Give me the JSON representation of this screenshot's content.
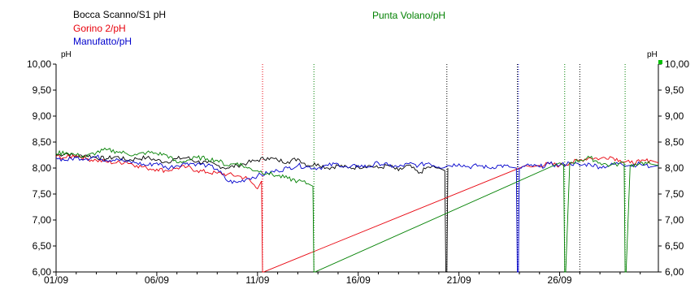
{
  "chart_data": {
    "type": "line",
    "legend": [
      {
        "name": "Bocca Scanno/S1 pH",
        "color": "#000000"
      },
      {
        "name": "Gorino 2/pH",
        "color": "#e8000b"
      },
      {
        "name": "Manufatto/pH",
        "color": "#0000cc"
      },
      {
        "name": "Punta Volano/pH",
        "color": "#008000"
      }
    ],
    "y_unit_left": "pH",
    "y_unit_right": "pH",
    "ylim": [
      6.0,
      10.0
    ],
    "y_ticks": [
      "10,00",
      "9,50",
      "9,00",
      "8,50",
      "8,00",
      "7,50",
      "7,00",
      "6,50",
      "6,00"
    ],
    "y_tick_values": [
      10.0,
      9.5,
      9.0,
      8.5,
      8.0,
      7.5,
      7.0,
      6.5,
      6.0
    ],
    "x_ticks": [
      "01/09",
      "06/09",
      "11/09",
      "16/09",
      "21/09",
      "26/09"
    ],
    "x_tick_days": [
      1,
      6,
      11,
      16,
      21,
      26
    ],
    "xlim_days": [
      1,
      30.9
    ],
    "grid": false,
    "series": [
      {
        "name": "Bocca Scanno/S1 pH",
        "color": "#000000",
        "x": [
          1,
          1.5,
          2,
          2.5,
          3,
          3.5,
          4,
          4.5,
          5,
          5.5,
          6,
          6.5,
          7,
          7.5,
          8,
          8.5,
          9,
          9.5,
          10,
          10.5,
          11,
          11.5,
          12,
          12.5,
          13,
          13.5,
          14,
          14.5,
          15,
          15.5,
          16,
          16.5,
          17,
          17.5,
          18,
          18.5,
          19,
          19.5,
          20,
          20.3,
          20.35,
          20.4,
          20.45
        ],
        "y": [
          8.25,
          8.28,
          8.22,
          8.25,
          8.2,
          8.18,
          8.22,
          8.15,
          8.18,
          8.2,
          8.15,
          8.12,
          8.18,
          8.2,
          8.12,
          8.1,
          8.05,
          8.0,
          8.05,
          8.1,
          8.15,
          8.2,
          8.15,
          8.12,
          8.18,
          8.05,
          8.08,
          8.0,
          8.05,
          8.0,
          8.02,
          8.05,
          8.0,
          8.05,
          7.95,
          8.05,
          7.9,
          8.02,
          8.0,
          7.95,
          6.0,
          6.0,
          8.0
        ]
      },
      {
        "name": "Gorino 2/pH",
        "color": "#e8000b",
        "x": [
          1,
          1.5,
          2,
          2.5,
          3,
          3.5,
          4,
          4.5,
          5,
          5.5,
          6,
          6.5,
          7,
          7.5,
          8,
          8.5,
          9,
          9.5,
          10,
          10.5,
          11,
          11.2,
          11.25,
          11.3,
          24,
          24.3,
          24.6,
          25,
          25.5,
          26,
          26.5,
          27,
          27.5,
          28,
          28.5,
          29,
          29.5,
          30,
          30.5,
          30.9
        ],
        "y": [
          8.22,
          8.2,
          8.25,
          8.18,
          8.15,
          8.12,
          8.1,
          8.12,
          8.05,
          8.0,
          7.98,
          7.95,
          8.0,
          8.02,
          7.95,
          7.92,
          7.9,
          7.88,
          7.85,
          7.8,
          7.6,
          7.75,
          6.0,
          6.0,
          8.0,
          8.05,
          8.02,
          8.05,
          8.08,
          8.05,
          8.1,
          8.15,
          8.2,
          8.18,
          8.22,
          8.15,
          8.1,
          8.12,
          8.15,
          8.1
        ]
      },
      {
        "name": "Manufatto/pH",
        "color": "#0000cc",
        "x": [
          1,
          1.5,
          2,
          2.5,
          3,
          3.5,
          4,
          4.5,
          5,
          5.5,
          6,
          6.5,
          7,
          7.5,
          8,
          8.5,
          9,
          9.5,
          10,
          10.5,
          11,
          11.5,
          12,
          12.5,
          13,
          13.5,
          14,
          14.5,
          15,
          15.5,
          16,
          16.5,
          17,
          17.5,
          18,
          18.5,
          19,
          19.5,
          20,
          20.5,
          21,
          21.5,
          22,
          22.5,
          23,
          23.5,
          23.85,
          23.9,
          23.95,
          24,
          24.5,
          25,
          25.5,
          26,
          26.5,
          27,
          27.5,
          28,
          28.5,
          29,
          29.5,
          30,
          30.5,
          30.9
        ],
        "y": [
          8.2,
          8.15,
          8.2,
          8.18,
          8.22,
          8.15,
          8.18,
          8.12,
          8.1,
          8.05,
          8.1,
          8.0,
          8.05,
          8.1,
          8.08,
          8.05,
          7.98,
          7.75,
          7.72,
          7.8,
          7.85,
          7.9,
          7.95,
          8.0,
          8.05,
          8.02,
          8.0,
          8.05,
          8.08,
          8.0,
          8.05,
          8.02,
          8.1,
          8.05,
          8.02,
          8.08,
          8.05,
          8.1,
          8.02,
          8.05,
          8.08,
          8.02,
          8.05,
          8.0,
          8.05,
          8.02,
          8.0,
          6.0,
          6.0,
          8.0,
          8.05,
          8.02,
          8.08,
          8.05,
          8.1,
          8.05,
          8.08,
          8.02,
          8.05,
          8.1,
          8.05,
          8.08,
          8.02,
          8.05
        ]
      },
      {
        "name": "Punta Volano/pH",
        "color": "#008000",
        "x": [
          1,
          1.5,
          2,
          2.5,
          3,
          3.5,
          4,
          4.5,
          5,
          5.5,
          6,
          6.5,
          7,
          7.5,
          8,
          8.5,
          9,
          9.5,
          10,
          10.5,
          11,
          11.5,
          12,
          12.5,
          13,
          13.5,
          13.75,
          13.8,
          13.85,
          26,
          26.2,
          26.25,
          26.3,
          26.5,
          27,
          27.5,
          28,
          28.5,
          29.2,
          29.25,
          29.3,
          29.5,
          30,
          30.5,
          30.9
        ],
        "y": [
          8.28,
          8.3,
          8.25,
          8.22,
          8.3,
          8.35,
          8.32,
          8.28,
          8.25,
          8.3,
          8.28,
          8.25,
          8.1,
          8.15,
          8.2,
          8.18,
          8.15,
          8.05,
          8.1,
          8.0,
          7.95,
          7.9,
          7.85,
          7.8,
          7.75,
          7.7,
          7.65,
          6.0,
          6.0,
          8.1,
          8.05,
          6.0,
          6.0,
          8.1,
          8.15,
          8.2,
          8.1,
          8.05,
          8.1,
          6.0,
          6.0,
          8.05,
          8.1,
          8.08,
          8.05
        ]
      }
    ],
    "vertical_markers": [
      {
        "day": 11.25,
        "color": "#e8000b"
      },
      {
        "day": 13.8,
        "color": "#008000"
      },
      {
        "day": 20.4,
        "color": "#000000"
      },
      {
        "day": 23.9,
        "color": "#000000"
      },
      {
        "day": 23.95,
        "color": "#0000cc"
      },
      {
        "day": 26.25,
        "color": "#008000"
      },
      {
        "day": 27.0,
        "color": "#000000"
      },
      {
        "day": 29.25,
        "color": "#008000"
      }
    ]
  }
}
